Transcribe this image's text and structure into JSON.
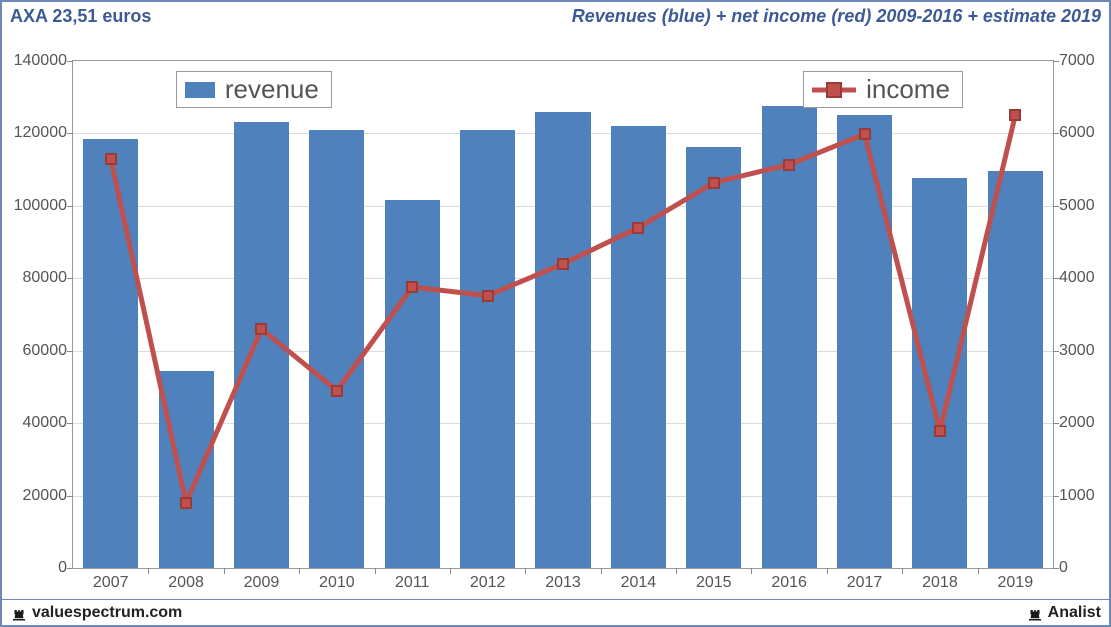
{
  "header": {
    "left": "AXA 23,51 euros",
    "right": "Revenues (blue) + net income (red) 2009-2016 + estimate 2019"
  },
  "footer": {
    "left": "valuespectrum.com",
    "right": "Analist"
  },
  "chart": {
    "type": "bar+line",
    "background_color": "#ffffff",
    "grid_color": "#dcdcdc",
    "axis_text_color": "#555555",
    "border_color": "#999999",
    "categories": [
      "2007",
      "2008",
      "2009",
      "2010",
      "2011",
      "2012",
      "2013",
      "2014",
      "2015",
      "2016",
      "2017",
      "2018",
      "2019"
    ],
    "bar_series": {
      "label": "revenue",
      "color": "#4f81bd",
      "values": [
        118500,
        54500,
        123200,
        121000,
        101500,
        121000,
        125800,
        122000,
        116300,
        127500,
        125000,
        107700,
        109500
      ],
      "bar_width": 0.73
    },
    "line_series": {
      "label": "income",
      "color": "#c0504d",
      "marker_border": "#9a3b38",
      "marker_size": 12,
      "line_width": 5,
      "values": [
        5650,
        900,
        3300,
        2450,
        3880,
        3760,
        4200,
        4700,
        5320,
        5570,
        5990,
        1890,
        6250
      ]
    },
    "y_left": {
      "min": 0,
      "max": 140000,
      "step": 20000
    },
    "y_right": {
      "min": 0,
      "max": 7000,
      "step": 1000
    },
    "legend": {
      "revenue_pos": {
        "left_pct": 10.5,
        "top_pct": 2
      },
      "income_pos": {
        "left_pct": 74.5,
        "top_pct": 2
      }
    },
    "label_fontsize": 16,
    "legend_fontsize": 26
  }
}
